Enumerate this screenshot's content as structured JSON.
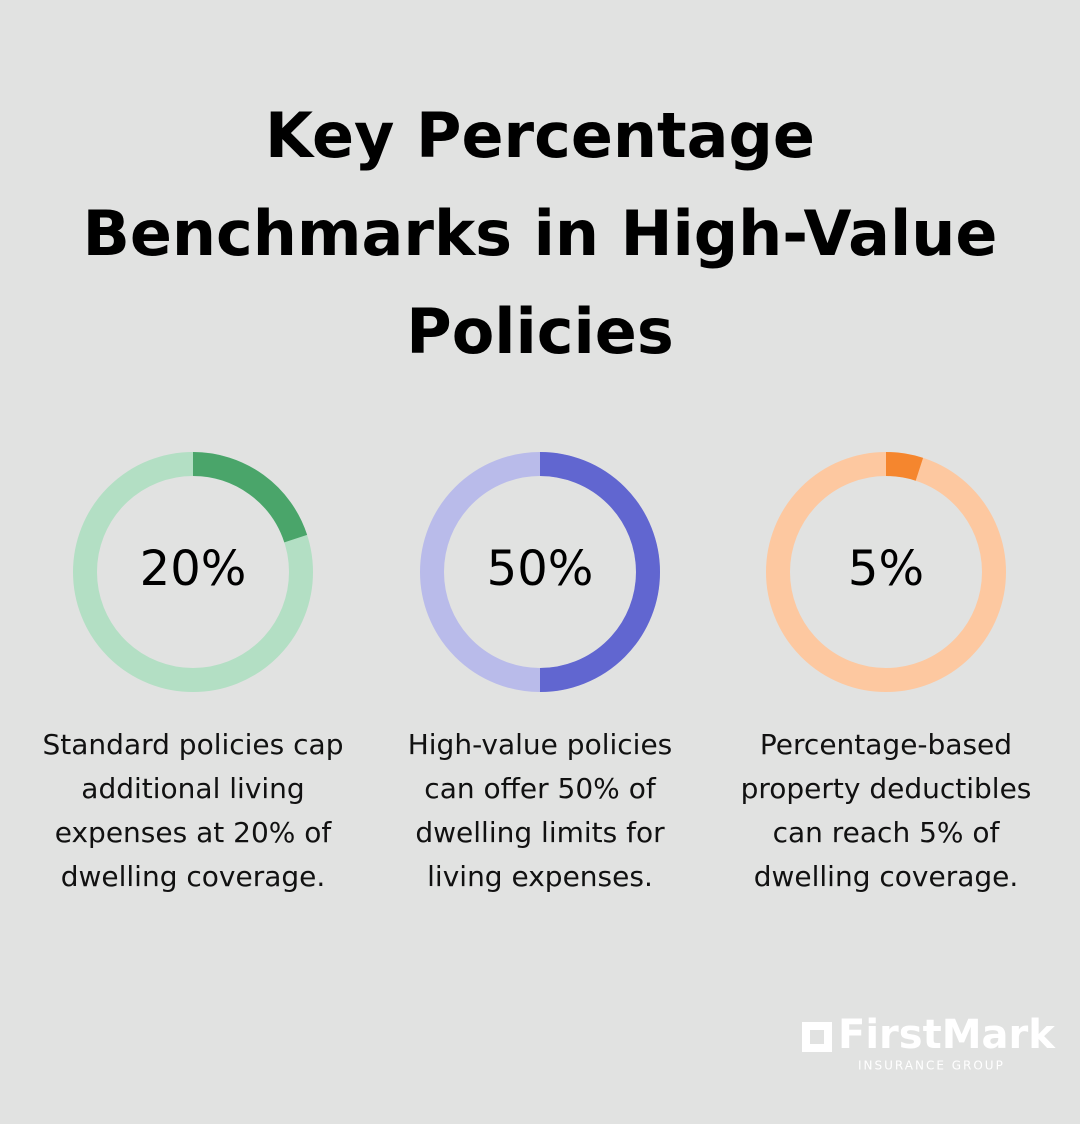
{
  "title_lines": [
    "Key Percentage",
    "Benchmarks in High-Value",
    "Policies"
  ],
  "chart_data": [
    {
      "type": "donut",
      "values": [
        20
      ],
      "value_labels": [
        "20%"
      ],
      "ylim": [
        0,
        100
      ],
      "color": "#4aa56a",
      "track_color": "#b3dfc4",
      "caption_lines": [
        "Standard policies cap",
        "additional living",
        "expenses at 20% of",
        "dwelling coverage."
      ]
    },
    {
      "type": "donut",
      "values": [
        50
      ],
      "value_labels": [
        "50%"
      ],
      "ylim": [
        0,
        100
      ],
      "color": "#6166d0",
      "track_color": "#b9bbea",
      "caption_lines": [
        "High-value policies",
        "can offer 50% of",
        "dwelling limits for",
        "living expenses."
      ]
    },
    {
      "type": "donut",
      "values": [
        5
      ],
      "value_labels": [
        "5%"
      ],
      "ylim": [
        0,
        100
      ],
      "color": "#f5862e",
      "track_color": "#fdc8a0",
      "caption_lines": [
        "Percentage-based",
        "property deductibles",
        "can reach 5% of",
        "dwelling coverage."
      ]
    }
  ],
  "logo": {
    "name": "FirstMark",
    "tagline": "INSURANCE GROUP"
  }
}
